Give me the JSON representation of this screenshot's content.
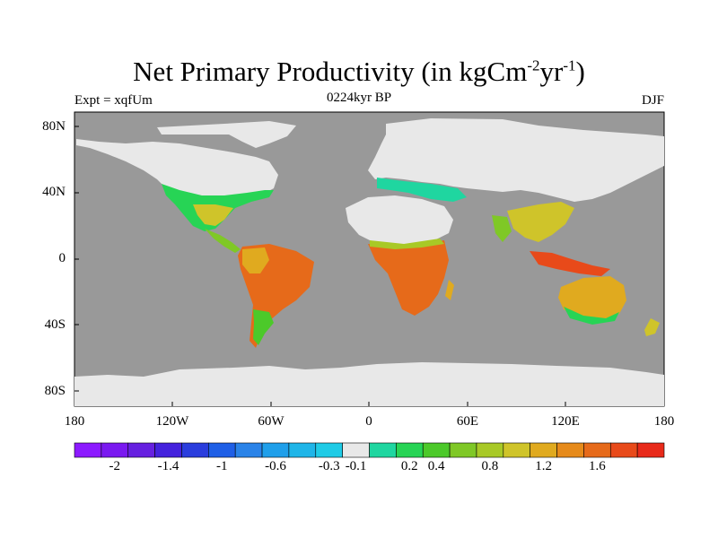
{
  "title_main": "Net Primary Productivity (in kgCm",
  "title_sup1": "-2",
  "title_mid": "yr",
  "title_sup2": "-1",
  "title_end": ")",
  "experiment": "Expt = xqfUm",
  "time_label": "0224kyr BP",
  "season": "DJF",
  "y_ticks": [
    "80N",
    "40N",
    "0",
    "40S",
    "80S"
  ],
  "x_ticks": [
    "180",
    "120W",
    "60W",
    "0",
    "60E",
    "120E",
    "180"
  ],
  "colorbar": {
    "labels": [
      "-2",
      "-1.4",
      "-1",
      "-0.6",
      "-0.3",
      "-0.1",
      "0.2",
      "0.4",
      "0.8",
      "1.2",
      "1.6"
    ],
    "colors": [
      "#8c1aff",
      "#7a19f0",
      "#6620e0",
      "#4422dd",
      "#2a3ddd",
      "#1f5fe6",
      "#2a83e8",
      "#1f9fea",
      "#1fb5e8",
      "#1fcbe6",
      "#e8e8e8",
      "#1fd6a0",
      "#27d455",
      "#4cc92a",
      "#7fc826",
      "#a8c926",
      "#cfc42a",
      "#e0aa1f",
      "#e68a1a",
      "#e66a1a",
      "#e84a1a",
      "#e82a1a"
    ]
  },
  "colors": {
    "ocean": "#999999",
    "ice": "#e8e8e8",
    "coast": "#000000"
  }
}
